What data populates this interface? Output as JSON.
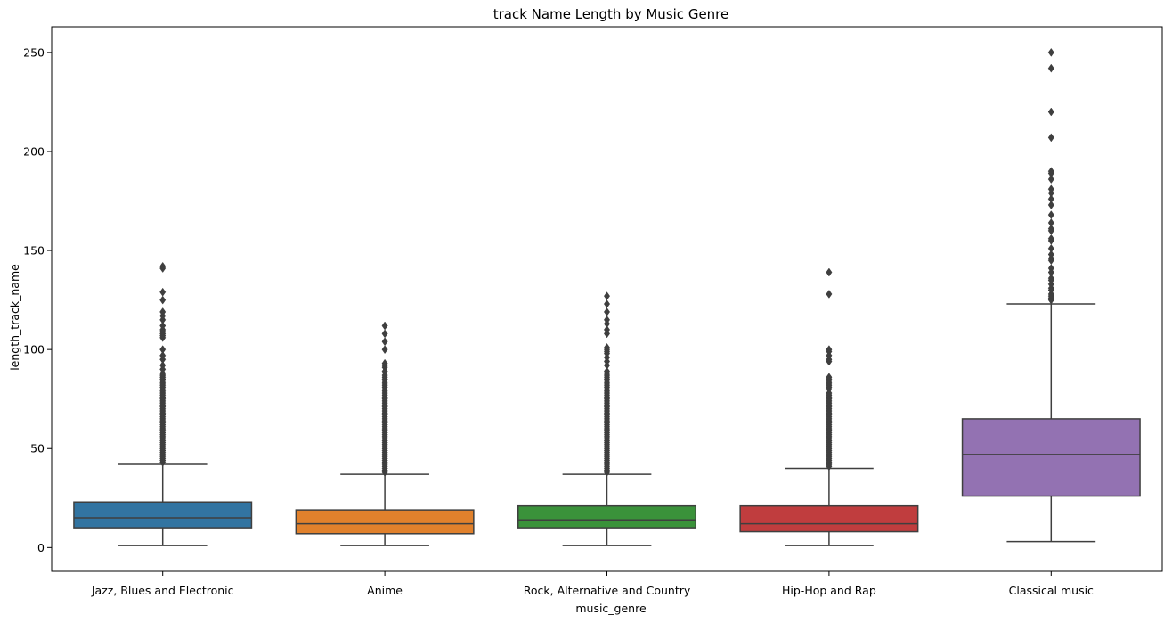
{
  "chart_data": {
    "type": "box",
    "title": "track Name Length by Music Genre",
    "xlabel": "music_genre",
    "ylabel": "length_track_name",
    "ylim": [
      -12,
      263
    ],
    "yticks": [
      0,
      50,
      100,
      150,
      200,
      250
    ],
    "grid": false,
    "categories": [
      "Jazz, Blues and Electronic",
      "Anime",
      "Rock, Alternative and Country",
      "Hip-Hop and Rap",
      "Classical music"
    ],
    "colors": [
      "#3274a1",
      "#e1812c",
      "#3a923a",
      "#c03d3e",
      "#9372b2"
    ],
    "boxes": [
      {
        "min": 1,
        "q1": 10,
        "median": 15,
        "q3": 23,
        "max": 42,
        "outliers": [
          43,
          44,
          45,
          46,
          47,
          48,
          49,
          50,
          51,
          52,
          53,
          54,
          55,
          56,
          57,
          58,
          59,
          60,
          61,
          62,
          63,
          64,
          65,
          66,
          67,
          68,
          69,
          70,
          71,
          72,
          73,
          74,
          75,
          76,
          77,
          78,
          79,
          80,
          81,
          82,
          83,
          84,
          85,
          86,
          87,
          88,
          90,
          92,
          95,
          97,
          100,
          106,
          107,
          108,
          109,
          110,
          112,
          115,
          117,
          119,
          125,
          129,
          141,
          142
        ]
      },
      {
        "min": 1,
        "q1": 7,
        "median": 12,
        "q3": 19,
        "max": 37,
        "outliers": [
          38,
          39,
          40,
          41,
          42,
          43,
          44,
          45,
          46,
          47,
          48,
          49,
          50,
          51,
          52,
          53,
          54,
          55,
          56,
          57,
          58,
          59,
          60,
          61,
          62,
          63,
          64,
          65,
          66,
          67,
          68,
          69,
          70,
          71,
          72,
          73,
          74,
          75,
          76,
          77,
          78,
          79,
          80,
          81,
          82,
          83,
          84,
          85,
          86,
          87,
          89,
          91,
          92,
          93,
          100,
          104,
          108,
          112
        ]
      },
      {
        "min": 1,
        "q1": 10,
        "median": 14,
        "q3": 21,
        "max": 37,
        "outliers": [
          38,
          39,
          40,
          41,
          42,
          43,
          44,
          45,
          46,
          47,
          48,
          49,
          50,
          51,
          52,
          53,
          54,
          55,
          56,
          57,
          58,
          59,
          60,
          61,
          62,
          63,
          64,
          65,
          66,
          67,
          68,
          69,
          70,
          71,
          72,
          73,
          74,
          75,
          76,
          77,
          78,
          79,
          80,
          81,
          82,
          83,
          84,
          85,
          86,
          87,
          88,
          89,
          92,
          94,
          96,
          98,
          99,
          100,
          101,
          108,
          110,
          113,
          115,
          119,
          123,
          127
        ]
      },
      {
        "min": 1,
        "q1": 8,
        "median": 12,
        "q3": 21,
        "max": 40,
        "outliers": [
          41,
          42,
          43,
          44,
          45,
          46,
          47,
          48,
          49,
          50,
          51,
          52,
          53,
          54,
          55,
          56,
          57,
          58,
          59,
          60,
          61,
          62,
          63,
          64,
          65,
          66,
          67,
          68,
          69,
          70,
          71,
          72,
          73,
          74,
          75,
          76,
          77,
          78,
          80,
          81,
          82,
          83,
          84,
          85,
          86,
          94,
          95,
          97,
          99,
          100,
          128,
          139
        ]
      },
      {
        "min": 3,
        "q1": 26,
        "median": 47,
        "q3": 65,
        "max": 123,
        "outliers": [
          125,
          126,
          127,
          128,
          130,
          131,
          133,
          135,
          136,
          139,
          141,
          145,
          146,
          148,
          151,
          155,
          156,
          160,
          161,
          164,
          168,
          173,
          176,
          179,
          181,
          186,
          189,
          190,
          207,
          220,
          242,
          250
        ]
      }
    ]
  }
}
